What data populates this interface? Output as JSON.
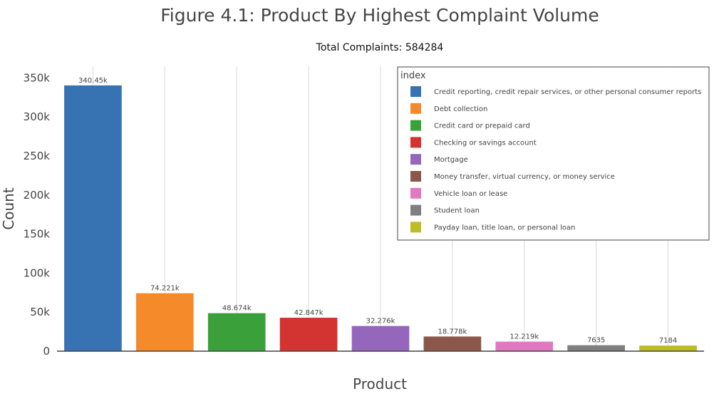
{
  "chart_data": {
    "type": "bar",
    "title": "Figure 4.1: Product By Highest Complaint Volume",
    "subtitle": "Total Complaints: 584284",
    "xlabel": "Product",
    "ylabel": "Count",
    "ylim": [
      0,
      365000
    ],
    "yticks": [
      0,
      50000,
      100000,
      150000,
      200000,
      250000,
      300000,
      350000
    ],
    "ytick_labels": [
      "0",
      "50k",
      "100k",
      "150k",
      "200k",
      "250k",
      "300k",
      "350k"
    ],
    "grid": "vertical",
    "legend": {
      "title": "index",
      "position": "top-right"
    },
    "series": [
      {
        "name": "Credit reporting, credit repair services, or other personal consumer reports",
        "value": 340450,
        "label": "340.45k",
        "color": "#3772b3"
      },
      {
        "name": "Debt collection",
        "value": 74221,
        "label": "74.221k",
        "color": "#f58a2a"
      },
      {
        "name": "Credit card or prepaid card",
        "value": 48674,
        "label": "48.674k",
        "color": "#3aa13a"
      },
      {
        "name": "Checking or savings account",
        "value": 42847,
        "label": "42.847k",
        "color": "#d33331"
      },
      {
        "name": "Mortgage",
        "value": 32276,
        "label": "32.276k",
        "color": "#9467bd"
      },
      {
        "name": "Money transfer, virtual currency, or money service",
        "value": 18778,
        "label": "18.778k",
        "color": "#8c564b"
      },
      {
        "name": "Vehicle loan or lease",
        "value": 12219,
        "label": "12.219k",
        "color": "#e079c2"
      },
      {
        "name": "Student loan",
        "value": 7635,
        "label": "7635",
        "color": "#7f7f7f"
      },
      {
        "name": "Payday loan, title loan, or personal loan",
        "value": 7184,
        "label": "7184",
        "color": "#bcbd22"
      }
    ]
  }
}
